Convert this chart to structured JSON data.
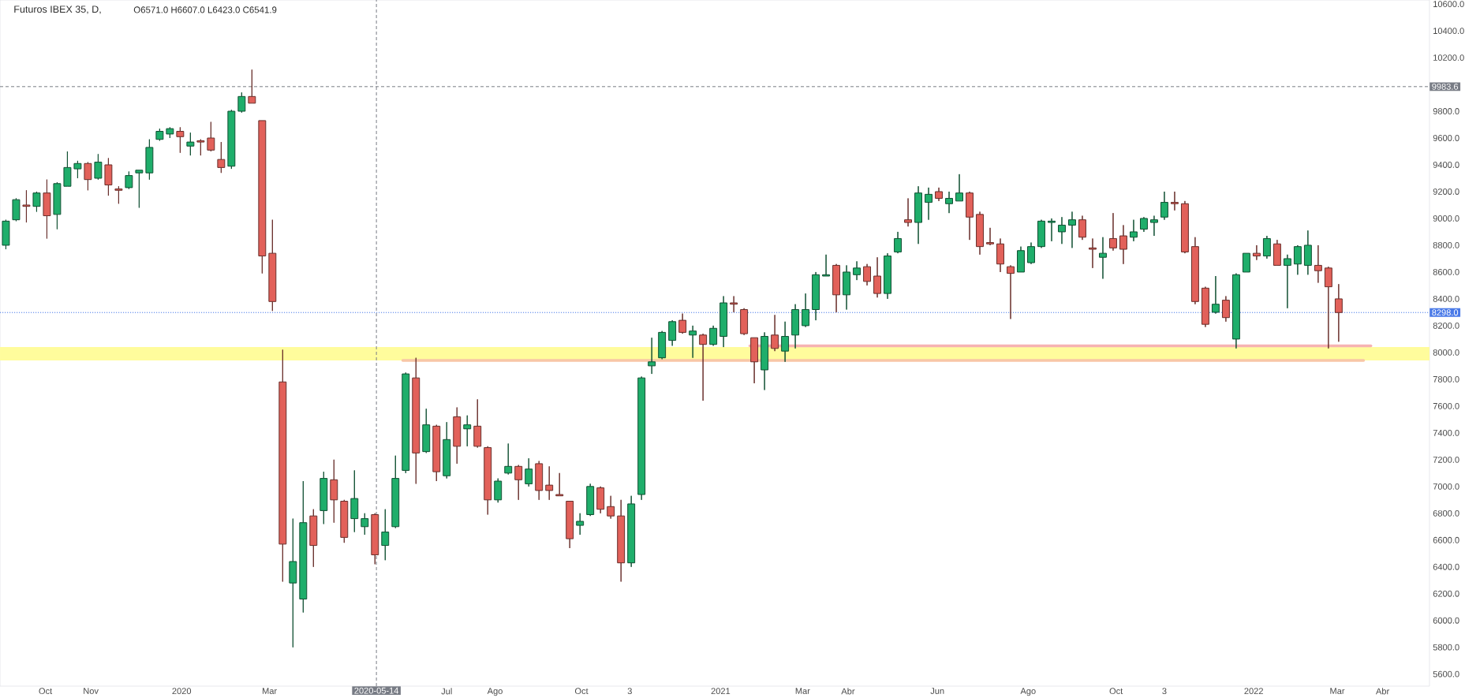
{
  "chart_data": {
    "type": "candlestick",
    "title": "Futuros IBEX 35, D,",
    "annotations": [
      "O6571.0 H6607.0 L6423.0 C6541.9"
    ],
    "series": [
      {
        "x": [
          "2019-09-04",
          "2019-09-11",
          "2019-09-18",
          "2019-09-25",
          "2019-10-02",
          "2019-10-09",
          "2019-10-16",
          "2019-10-23",
          "2019-10-30",
          "2019-11-06",
          "2019-11-13",
          "2019-11-20",
          "2019-11-27",
          "2019-12-04",
          "2019-12-11",
          "2019-12-18",
          "2019-12-25",
          "2020-01-01",
          "2020-01-08",
          "2020-01-15",
          "2020-01-22",
          "2020-01-29",
          "2020-02-05",
          "2020-02-12",
          "2020-02-19",
          "2020-02-26",
          "2020-03-04",
          "2020-03-11",
          "2020-03-18",
          "2020-03-25",
          "2020-04-01",
          "2020-04-08",
          "2020-04-15",
          "2020-04-22",
          "2020-04-29",
          "2020-05-06",
          "2020-05-13",
          "2020-05-20",
          "2020-05-27",
          "2020-06-03",
          "2020-06-10",
          "2020-06-17",
          "2020-06-24",
          "2020-07-01",
          "2020-07-08",
          "2020-07-15",
          "2020-07-22",
          "2020-07-29",
          "2020-08-05",
          "2020-08-12",
          "2020-08-19",
          "2020-08-26",
          "2020-09-02",
          "2020-09-09",
          "2020-09-16",
          "2020-09-23",
          "2020-09-30",
          "2020-10-07",
          "2020-10-14",
          "2020-10-21",
          "2020-10-28",
          "2020-11-04",
          "2020-11-11",
          "2020-11-18",
          "2020-11-25",
          "2020-12-02",
          "2020-12-09",
          "2020-12-16",
          "2020-12-23",
          "2020-12-30",
          "2021-01-06",
          "2021-01-13",
          "2021-01-20",
          "2021-01-27",
          "2021-02-03",
          "2021-02-10",
          "2021-02-17",
          "2021-02-24",
          "2021-03-03",
          "2021-03-10",
          "2021-03-17",
          "2021-03-24",
          "2021-03-31",
          "2021-04-07",
          "2021-04-14",
          "2021-04-21",
          "2021-04-28",
          "2021-05-05",
          "2021-05-12",
          "2021-05-19",
          "2021-05-26",
          "2021-06-02",
          "2021-06-09",
          "2021-06-16",
          "2021-06-23",
          "2021-06-30",
          "2021-07-07",
          "2021-07-14",
          "2021-07-21",
          "2021-07-28",
          "2021-08-04",
          "2021-08-11",
          "2021-08-18",
          "2021-08-25",
          "2021-09-01",
          "2021-09-08",
          "2021-09-15",
          "2021-09-22",
          "2021-09-29",
          "2021-10-06",
          "2021-10-13",
          "2021-10-20",
          "2021-10-27",
          "2021-11-03",
          "2021-11-10",
          "2021-11-17",
          "2021-11-24",
          "2021-12-01",
          "2021-12-08",
          "2021-12-15",
          "2021-12-22",
          "2021-12-29",
          "2022-01-05",
          "2022-01-12",
          "2022-01-19",
          "2022-01-26",
          "2022-02-02",
          "2022-02-09",
          "2022-02-16",
          "2022-02-23",
          "2022-03-02"
        ],
        "ohlc": [
          [
            8800,
            8990,
            8770,
            8980
          ],
          [
            8990,
            9150,
            8980,
            9140
          ],
          [
            9100,
            9210,
            8970,
            9090
          ],
          [
            9090,
            9200,
            9050,
            9190
          ],
          [
            9190,
            9290,
            8850,
            9020
          ],
          [
            9030,
            9270,
            8920,
            9260
          ],
          [
            9240,
            9500,
            9240,
            9380
          ],
          [
            9370,
            9430,
            9300,
            9410
          ],
          [
            9410,
            9420,
            9210,
            9290
          ],
          [
            9300,
            9480,
            9290,
            9420
          ],
          [
            9400,
            9450,
            9170,
            9250
          ],
          [
            9220,
            9240,
            9110,
            9210
          ],
          [
            9230,
            9350,
            9220,
            9320
          ],
          [
            9340,
            9360,
            9080,
            9360
          ],
          [
            9340,
            9590,
            9290,
            9530
          ],
          [
            9590,
            9670,
            9580,
            9650
          ],
          [
            9630,
            9680,
            9600,
            9670
          ],
          [
            9650,
            9680,
            9490,
            9610
          ],
          [
            9540,
            9640,
            9470,
            9570
          ],
          [
            9580,
            9590,
            9470,
            9570
          ],
          [
            9600,
            9720,
            9500,
            9510
          ],
          [
            9440,
            9570,
            9340,
            9380
          ],
          [
            9390,
            9810,
            9370,
            9800
          ],
          [
            9800,
            9940,
            9790,
            9910
          ],
          [
            9910,
            10110,
            9860,
            9860
          ],
          [
            9730,
            9730,
            8590,
            8720
          ],
          [
            8740,
            8990,
            8310,
            8380
          ],
          [
            7780,
            8020,
            6290,
            6570
          ],
          [
            6280,
            6760,
            5800,
            6440
          ],
          [
            6160,
            7040,
            6060,
            6730
          ],
          [
            6780,
            6830,
            6400,
            6560
          ],
          [
            6820,
            7110,
            6720,
            7060
          ],
          [
            7050,
            7200,
            6730,
            6900
          ],
          [
            6890,
            6900,
            6580,
            6620
          ],
          [
            6760,
            7120,
            6660,
            6910
          ],
          [
            6700,
            6800,
            6640,
            6760
          ],
          [
            6790,
            6800,
            6420,
            6490
          ],
          [
            6560,
            6830,
            6450,
            6660
          ],
          [
            6700,
            7230,
            6690,
            7060
          ],
          [
            7120,
            7850,
            7100,
            7840
          ],
          [
            7810,
            7960,
            7020,
            7250
          ],
          [
            7260,
            7580,
            7250,
            7460
          ],
          [
            7450,
            7460,
            7040,
            7110
          ],
          [
            7080,
            7480,
            7060,
            7350
          ],
          [
            7520,
            7590,
            7170,
            7300
          ],
          [
            7430,
            7530,
            7300,
            7460
          ],
          [
            7450,
            7650,
            7290,
            7300
          ],
          [
            7290,
            7300,
            6790,
            6900
          ],
          [
            6900,
            7060,
            6880,
            7040
          ],
          [
            7100,
            7320,
            7090,
            7150
          ],
          [
            7150,
            7160,
            6900,
            7050
          ],
          [
            7020,
            7210,
            7000,
            7130
          ],
          [
            7170,
            7190,
            6900,
            6970
          ],
          [
            7010,
            7150,
            6900,
            6970
          ],
          [
            6940,
            7100,
            6930,
            6930
          ],
          [
            6890,
            6890,
            6540,
            6610
          ],
          [
            6710,
            6800,
            6640,
            6740
          ],
          [
            6790,
            7020,
            6780,
            7000
          ],
          [
            6990,
            7000,
            6800,
            6830
          ],
          [
            6850,
            6930,
            6760,
            6780
          ],
          [
            6780,
            6900,
            6290,
            6430
          ],
          [
            6430,
            6930,
            6400,
            6870
          ],
          [
            6940,
            7820,
            6900,
            7810
          ],
          [
            7900,
            8110,
            7840,
            7930
          ],
          [
            7960,
            8160,
            7950,
            8150
          ],
          [
            8090,
            8240,
            8050,
            8230
          ],
          [
            8240,
            8290,
            8140,
            8150
          ],
          [
            8130,
            8200,
            7960,
            8160
          ],
          [
            8130,
            8140,
            7640,
            8060
          ],
          [
            8060,
            8200,
            8050,
            8180
          ],
          [
            8120,
            8420,
            8040,
            8370
          ],
          [
            8370,
            8420,
            8300,
            8360
          ],
          [
            8320,
            8330,
            8130,
            8140
          ],
          [
            8110,
            8110,
            7770,
            7930
          ],
          [
            7870,
            8150,
            7720,
            8120
          ],
          [
            8130,
            8280,
            8010,
            8030
          ],
          [
            8010,
            8230,
            7930,
            8120
          ],
          [
            8130,
            8360,
            8030,
            8320
          ],
          [
            8200,
            8440,
            8190,
            8320
          ],
          [
            8320,
            8600,
            8240,
            8580
          ],
          [
            8570,
            8730,
            8570,
            8580
          ],
          [
            8650,
            8660,
            8300,
            8430
          ],
          [
            8430,
            8650,
            8320,
            8600
          ],
          [
            8580,
            8680,
            8540,
            8630
          ],
          [
            8640,
            8660,
            8500,
            8530
          ],
          [
            8570,
            8710,
            8410,
            8440
          ],
          [
            8440,
            8740,
            8400,
            8720
          ],
          [
            8750,
            8900,
            8740,
            8850
          ],
          [
            8990,
            9150,
            8940,
            8970
          ],
          [
            8970,
            9240,
            8810,
            9190
          ],
          [
            9120,
            9230,
            8990,
            9180
          ],
          [
            9200,
            9230,
            9130,
            9150
          ],
          [
            9110,
            9200,
            9040,
            9150
          ],
          [
            9130,
            9330,
            9130,
            9190
          ],
          [
            9190,
            9200,
            8840,
            9010
          ],
          [
            9030,
            9050,
            8730,
            8790
          ],
          [
            8820,
            8930,
            8800,
            8810
          ],
          [
            8810,
            8850,
            8600,
            8660
          ],
          [
            8640,
            8650,
            8250,
            8590
          ],
          [
            8600,
            8790,
            8600,
            8760
          ],
          [
            8670,
            8820,
            8660,
            8790
          ],
          [
            8790,
            8990,
            8780,
            8980
          ],
          [
            8970,
            9000,
            8830,
            8980
          ],
          [
            8900,
            9010,
            8810,
            8950
          ],
          [
            8950,
            9050,
            8780,
            8990
          ],
          [
            8990,
            9020,
            8840,
            8860
          ],
          [
            8780,
            8850,
            8630,
            8770
          ],
          [
            8710,
            8860,
            8550,
            8740
          ],
          [
            8850,
            9040,
            8760,
            8780
          ],
          [
            8870,
            8950,
            8660,
            8770
          ],
          [
            8860,
            8990,
            8830,
            8900
          ],
          [
            8920,
            9010,
            8900,
            9000
          ],
          [
            8970,
            9020,
            8870,
            8990
          ],
          [
            9010,
            9200,
            8990,
            9120
          ],
          [
            9120,
            9200,
            9060,
            9110
          ],
          [
            9110,
            9130,
            8740,
            8750
          ],
          [
            8790,
            8860,
            8360,
            8380
          ],
          [
            8480,
            8490,
            8190,
            8210
          ],
          [
            8300,
            8570,
            8290,
            8360
          ],
          [
            8390,
            8420,
            8230,
            8260
          ],
          [
            8100,
            8590,
            8030,
            8580
          ],
          [
            8600,
            8740,
            8600,
            8740
          ],
          [
            8740,
            8800,
            8690,
            8720
          ],
          [
            8720,
            8870,
            8700,
            8850
          ],
          [
            8810,
            8840,
            8650,
            8650
          ],
          [
            8650,
            8730,
            8330,
            8700
          ],
          [
            8660,
            8800,
            8580,
            8790
          ],
          [
            8650,
            8910,
            8580,
            8800
          ],
          [
            8650,
            8800,
            8520,
            8610
          ],
          [
            8630,
            8640,
            8030,
            8490
          ],
          [
            8400,
            8510,
            8080,
            8298
          ]
        ],
        "colors": [
          "#1fae6b",
          "#1fae6b",
          "#e2615a",
          "#1fae6b",
          "#e2615a",
          "#1fae6b",
          "#1fae6b",
          "#1fae6b",
          "#e2615a",
          "#1fae6b",
          "#e2615a",
          "#e2615a",
          "#1fae6b",
          "#1fae6b",
          "#1fae6b",
          "#1fae6b",
          "#1fae6b",
          "#e2615a",
          "#1fae6b",
          "#e2615a",
          "#e2615a",
          "#e2615a",
          "#1fae6b",
          "#1fae6b",
          "#e2615a",
          "#e2615a",
          "#e2615a",
          "#e2615a",
          "#1fae6b",
          "#1fae6b",
          "#e2615a",
          "#1fae6b",
          "#e2615a",
          "#e2615a",
          "#1fae6b",
          "#1fae6b",
          "#e2615a",
          "#1fae6b",
          "#1fae6b",
          "#1fae6b",
          "#e2615a",
          "#1fae6b",
          "#e2615a",
          "#1fae6b",
          "#e2615a",
          "#1fae6b",
          "#e2615a",
          "#e2615a",
          "#1fae6b",
          "#1fae6b",
          "#e2615a",
          "#1fae6b",
          "#e2615a",
          "#e2615a",
          "#e2615a",
          "#e2615a",
          "#1fae6b",
          "#1fae6b",
          "#e2615a",
          "#e2615a",
          "#e2615a",
          "#1fae6b",
          "#1fae6b",
          "#1fae6b",
          "#1fae6b",
          "#1fae6b",
          "#e2615a",
          "#1fae6b",
          "#e2615a",
          "#1fae6b",
          "#1fae6b",
          "#e2615a",
          "#e2615a",
          "#e2615a",
          "#1fae6b",
          "#e2615a",
          "#1fae6b",
          "#1fae6b",
          "#1fae6b",
          "#1fae6b",
          "#1fae6b",
          "#e2615a",
          "#1fae6b",
          "#1fae6b",
          "#e2615a",
          "#e2615a",
          "#1fae6b",
          "#1fae6b",
          "#e2615a",
          "#1fae6b",
          "#1fae6b",
          "#e2615a",
          "#1fae6b",
          "#1fae6b",
          "#e2615a",
          "#e2615a",
          "#e2615a",
          "#e2615a",
          "#e2615a",
          "#1fae6b",
          "#1fae6b",
          "#1fae6b",
          "#1fae6b",
          "#1fae6b",
          "#1fae6b",
          "#e2615a",
          "#e2615a",
          "#1fae6b",
          "#e2615a",
          "#e2615a",
          "#1fae6b",
          "#1fae6b",
          "#1fae6b",
          "#1fae6b",
          "#e2615a",
          "#e2615a",
          "#e2615a",
          "#e2615a",
          "#1fae6b",
          "#e2615a",
          "#1fae6b",
          "#1fae6b",
          "#e2615a",
          "#1fae6b",
          "#e2615a",
          "#1fae6b",
          "#1fae6b",
          "#1fae6b",
          "#e2615a",
          "#e2615a",
          "#e2615a"
        ]
      },
      {
        "type": "line",
        "x": [
          "2021-01-24",
          "2022-03-24"
        ],
        "values": [
          8050,
          8050
        ],
        "color": "#f6b3b3"
      },
      {
        "type": "line",
        "x": [
          "2020-06-01",
          "2022-03-19"
        ],
        "values": [
          7940,
          7940
        ],
        "color": "#f8c6a6"
      }
    ],
    "bands": [
      {
        "axis": "y",
        "from": 7940,
        "to": 8040,
        "color": "#fffc9c"
      }
    ],
    "ref_lines": [
      {
        "axis": "y",
        "value": 9983.6,
        "label": "9983.6",
        "color": "#787c85",
        "line_style": "dashed"
      },
      {
        "axis": "x",
        "value": "2020-05-14",
        "label": "2020-05-14",
        "color": "#787c85",
        "line_style": "dashed"
      },
      {
        "axis": "y",
        "value": 8298,
        "label": "8298.0",
        "color": "#4a7ae8",
        "line_style": "dotted"
      }
    ],
    "xlim": [
      "2019-08-31",
      "2022-05-03"
    ],
    "ylim": [
      5510,
      10630
    ],
    "xticks": [
      {
        "value": "2019-10-01",
        "label": "Oct"
      },
      {
        "value": "2019-11-01",
        "label": "Nov"
      },
      {
        "value": "2020-01-02",
        "label": "2020"
      },
      {
        "value": "2020-03-02",
        "label": "Mar"
      },
      {
        "value": "2020-07-01",
        "label": "Jul"
      },
      {
        "value": "2020-08-03",
        "label": "Ago"
      },
      {
        "value": "2020-10-01",
        "label": "Oct"
      },
      {
        "value": "2020-11-03",
        "label": "3"
      },
      {
        "value": "2021-01-04",
        "label": "2021"
      },
      {
        "value": "2021-03-01",
        "label": "Mar"
      },
      {
        "value": "2021-04-01",
        "label": "Abr"
      },
      {
        "value": "2021-06-01",
        "label": "Jun"
      },
      {
        "value": "2021-08-02",
        "label": "Ago"
      },
      {
        "value": "2021-10-01",
        "label": "Oct"
      },
      {
        "value": "2021-11-03",
        "label": "3"
      },
      {
        "value": "2022-01-03",
        "label": "2022"
      },
      {
        "value": "2022-03-01",
        "label": "Mar"
      },
      {
        "value": "2022-04-01",
        "label": "Abr"
      }
    ],
    "yticks": [
      {
        "value": 5600,
        "label": "5600.0"
      },
      {
        "value": 5800,
        "label": "5800.0"
      },
      {
        "value": 6000,
        "label": "6000.0"
      },
      {
        "value": 6200,
        "label": "6200.0"
      },
      {
        "value": 6400,
        "label": "6400.0"
      },
      {
        "value": 6600,
        "label": "6600.0"
      },
      {
        "value": 6800,
        "label": "6800.0"
      },
      {
        "value": 7000,
        "label": "7000.0"
      },
      {
        "value": 7200,
        "label": "7200.0"
      },
      {
        "value": 7400,
        "label": "7400.0"
      },
      {
        "value": 7600,
        "label": "7600.0"
      },
      {
        "value": 7800,
        "label": "7800.0"
      },
      {
        "value": 8000,
        "label": "8000.0"
      },
      {
        "value": 8200,
        "label": "8200.0"
      },
      {
        "value": 8400,
        "label": "8400.0"
      },
      {
        "value": 8600,
        "label": "8600.0"
      },
      {
        "value": 8800,
        "label": "8800.0"
      },
      {
        "value": 9000,
        "label": "9000.0"
      },
      {
        "value": 9200,
        "label": "9200.0"
      },
      {
        "value": 9400,
        "label": "9400.0"
      },
      {
        "value": 9600,
        "label": "9600.0"
      },
      {
        "value": 9800,
        "label": "9800.0"
      },
      {
        "value": 10000,
        "label": null
      },
      {
        "value": 10200,
        "label": "10200.0"
      },
      {
        "value": 10400,
        "label": "10400.0"
      },
      {
        "value": 10600,
        "label": "10600.0"
      }
    ]
  }
}
